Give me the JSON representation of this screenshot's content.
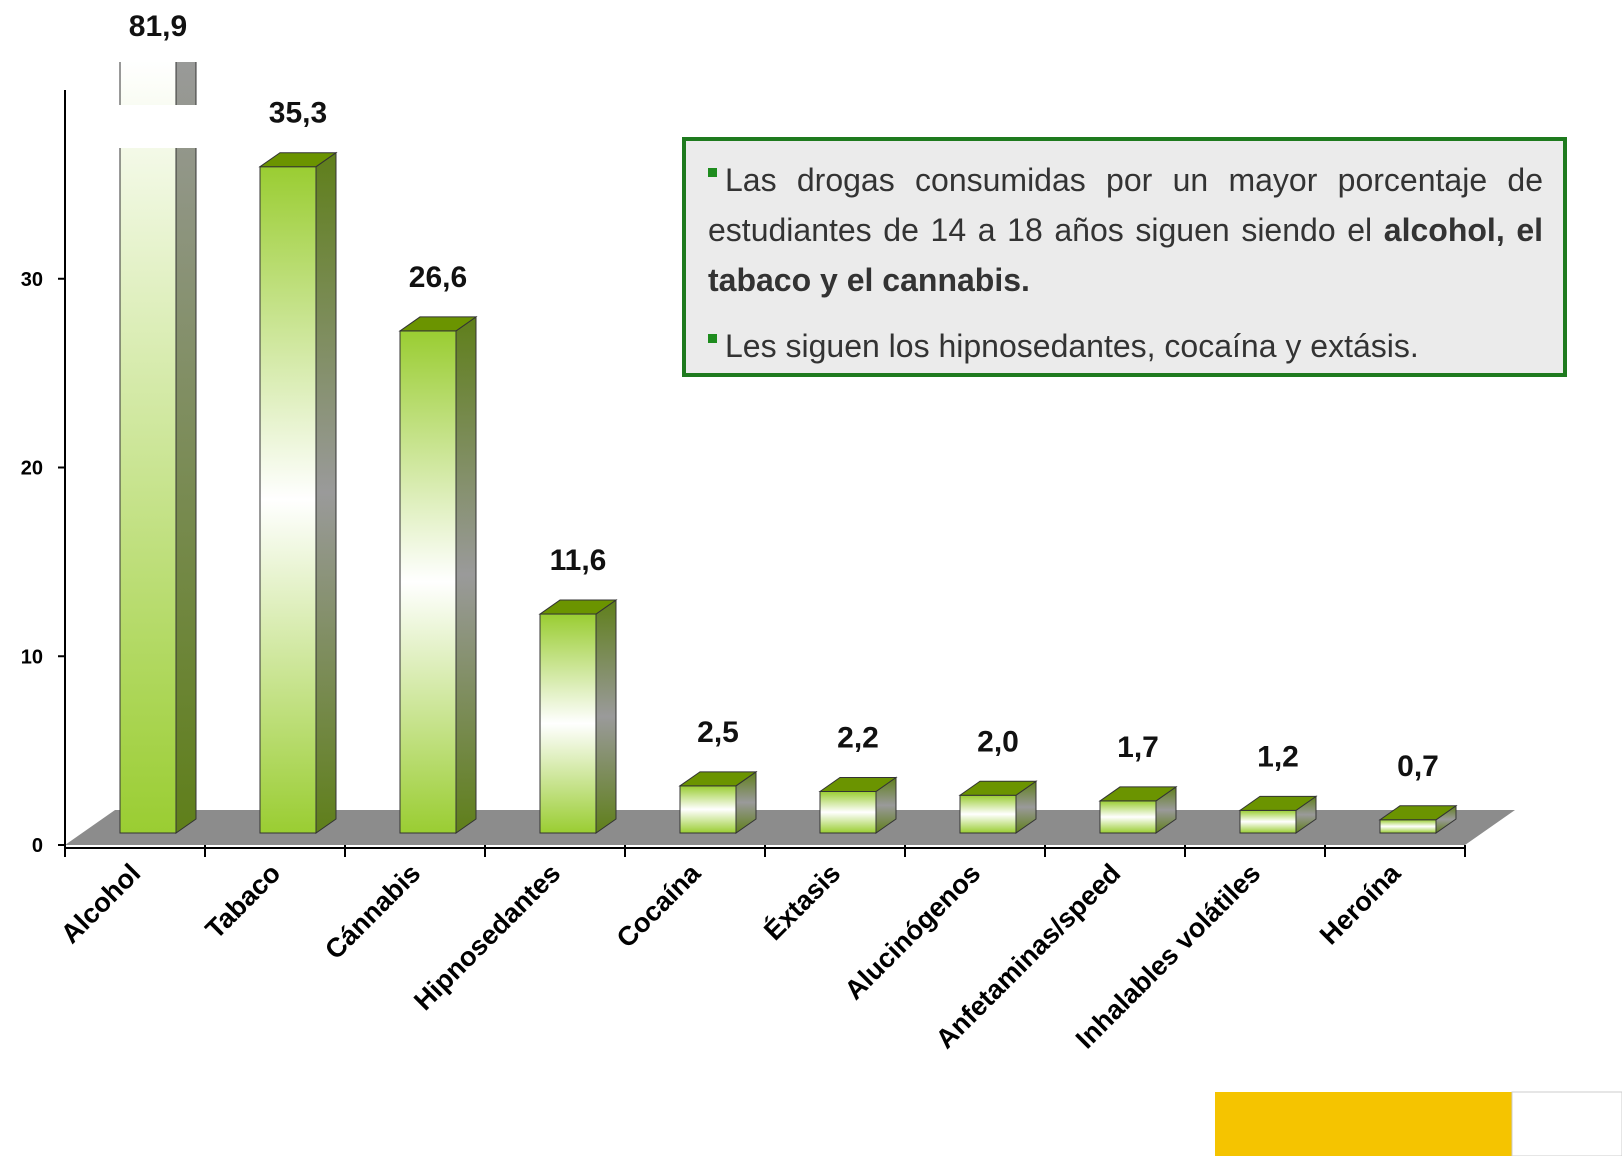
{
  "chart_data": {
    "type": "bar",
    "categories": [
      "Alcohol",
      "Tabaco",
      "Cánnabis",
      "Hipnosedantes",
      "Cocaína",
      "Éxtasis",
      "Alucinógenos",
      "Anfetaminas/speed",
      "Inhalables volátiles",
      "Heroína"
    ],
    "values": [
      81.9,
      35.3,
      26.6,
      11.6,
      2.5,
      2.2,
      2.0,
      1.7,
      1.2,
      0.7
    ],
    "value_labels": [
      "81,9",
      "35,3",
      "26,6",
      "11,6",
      "2,5",
      "2,2",
      "2,0",
      "1,7",
      "1,2",
      "0,7"
    ],
    "color": "#9acd32",
    "ylim": [
      0,
      40
    ],
    "yticks": [
      0,
      10,
      20,
      30
    ],
    "annotations": [
      [
        "Las drogas consumidas por un mayor porcentaje de estudiantes de 14 a 18 años siguen siendo el",
        "alcohol, el tabaco y el cannabis."
      ],
      [
        "Les siguen los hipnosedantes, cocaína y extásis."
      ]
    ]
  }
}
